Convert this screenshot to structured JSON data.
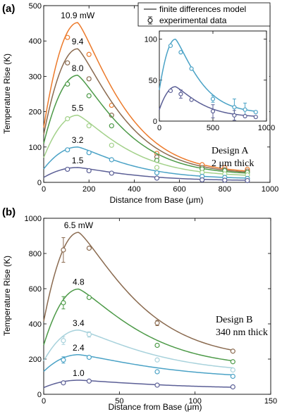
{
  "colors": {
    "orange": "#ec7a2b",
    "brown": "#8a6a4f",
    "green": "#4d9a48",
    "lightgreen": "#a3d18a",
    "lightblue": "#a8d2dc",
    "midblue": "#4aa2c6",
    "navy": "#5b5f96"
  },
  "legend": {
    "model": "finite differences model",
    "exp": "experimental data"
  },
  "chart_data": [
    {
      "type": "line",
      "panel": "(a)",
      "xlabel": "Distance from Base (μm)",
      "ylabel": "Temperature Rise (K)",
      "xlim": [
        0,
        1000
      ],
      "ylim": [
        0,
        500
      ],
      "xticks": [
        0,
        200,
        400,
        600,
        800,
        1000
      ],
      "yticks": [
        0,
        100,
        200,
        300,
        400,
        500
      ],
      "annotation": [
        "Design A",
        "2 μm thick"
      ],
      "legend_position": "top-right",
      "series": [
        {
          "name": "10.9 mW",
          "color": "orange",
          "model": {
            "x0": 0,
            "y0": 155,
            "peak_x": 150,
            "peak_y": 452,
            "tail_x": 900,
            "tail_y": 32
          },
          "points": [
            [
              105,
              410
            ],
            [
              200,
              362
            ],
            [
              300,
              218
            ],
            [
              500,
              82
            ],
            [
              700,
              50
            ],
            [
              800,
              42
            ],
            [
              900,
              37
            ]
          ]
        },
        {
          "name": "9.4",
          "color": "brown",
          "model": {
            "x0": 0,
            "y0": 135,
            "peak_x": 150,
            "peak_y": 378,
            "tail_x": 900,
            "tail_y": 29
          },
          "points": [
            [
              105,
              338
            ],
            [
              200,
              293
            ],
            [
              300,
              190
            ],
            [
              500,
              72
            ],
            [
              700,
              42
            ],
            [
              800,
              36
            ],
            [
              900,
              32
            ]
          ]
        },
        {
          "name": "8.0",
          "color": "green",
          "model": {
            "x0": 0,
            "y0": 110,
            "peak_x": 150,
            "peak_y": 303,
            "tail_x": 900,
            "tail_y": 26
          },
          "points": [
            [
              105,
              278
            ],
            [
              200,
              245
            ],
            [
              300,
              160
            ],
            [
              500,
              62
            ],
            [
              700,
              38
            ],
            [
              800,
              33
            ],
            [
              900,
              28
            ]
          ]
        },
        {
          "name": "5.5",
          "color": "lightgreen",
          "model": {
            "x0": 0,
            "y0": 70,
            "peak_x": 150,
            "peak_y": 190,
            "tail_x": 900,
            "tail_y": 20
          },
          "points": [
            [
              105,
              180
            ],
            [
              200,
              160
            ],
            [
              300,
              105
            ],
            [
              500,
              42
            ],
            [
              700,
              28
            ],
            [
              800,
              24
            ],
            [
              900,
              21
            ]
          ]
        },
        {
          "name": "3.2",
          "color": "midblue",
          "model": {
            "x0": 0,
            "y0": 38,
            "peak_x": 150,
            "peak_y": 100,
            "tail_x": 900,
            "tail_y": 12
          },
          "points": [
            [
              105,
              92
            ],
            [
              200,
              84
            ],
            [
              300,
              64
            ],
            [
              500,
              27
            ],
            [
              700,
              17
            ],
            [
              800,
              14
            ],
            [
              900,
              11
            ]
          ]
        },
        {
          "name": "1.5",
          "color": "navy",
          "model": {
            "x0": 0,
            "y0": 14,
            "peak_x": 150,
            "peak_y": 42,
            "tail_x": 900,
            "tail_y": 6
          },
          "points": [
            [
              105,
              37
            ],
            [
              200,
              33
            ],
            [
              300,
              26
            ],
            [
              500,
              12
            ],
            [
              700,
              7
            ],
            [
              800,
              6
            ],
            [
              900,
              5
            ]
          ]
        }
      ],
      "inset": {
        "xlim": [
          0,
          1000
        ],
        "ylim": [
          0,
          110
        ],
        "xticks": [
          0,
          500,
          1000
        ],
        "yticks": [
          0,
          50,
          100
        ],
        "series": [
          {
            "color": "midblue",
            "model": {
              "x0": 0,
              "y0": 38,
              "peak_x": 150,
              "peak_y": 100,
              "tail_x": 900,
              "tail_y": 12
            },
            "points": [
              [
                105,
                92
              ],
              [
                200,
                84
              ],
              [
                300,
                64
              ],
              [
                500,
                27
              ],
              [
                700,
                17
              ],
              [
                800,
                14
              ],
              [
                900,
                11
              ]
            ],
            "err": [
              0,
              0,
              0,
              4,
              10,
              8,
              0
            ]
          },
          {
            "color": "navy",
            "model": {
              "x0": 0,
              "y0": 14,
              "peak_x": 150,
              "peak_y": 42,
              "tail_x": 900,
              "tail_y": 6
            },
            "points": [
              [
                105,
                37
              ],
              [
                200,
                33
              ],
              [
                300,
                26
              ],
              [
                500,
                12
              ],
              [
                700,
                7
              ],
              [
                800,
                6
              ],
              [
                900,
                5
              ]
            ],
            "err": [
              0,
              5,
              0,
              8,
              6,
              0,
              0
            ]
          }
        ]
      }
    },
    {
      "type": "line",
      "panel": "(b)",
      "xlabel": "Distance from Base (μm)",
      "ylabel": "Temperature Rise (K)",
      "xlim": [
        0,
        150
      ],
      "ylim": [
        0,
        1000
      ],
      "xticks": [
        0,
        50,
        100,
        150
      ],
      "yticks": [
        0,
        200,
        400,
        600,
        800,
        1000
      ],
      "annotation": [
        "Design B",
        "340 nm thick"
      ],
      "series": [
        {
          "name": "6.5 mW",
          "color": "brown",
          "model": {
            "x0": 0,
            "y0": 415,
            "peak_x": 23,
            "peak_y": 920,
            "tail_x": 125,
            "tail_y": 250
          },
          "points": [
            [
              13,
              820
            ],
            [
              30,
              830
            ],
            [
              75,
              405
            ],
            [
              125,
              245
            ]
          ],
          "err": [
            70,
            0,
            15,
            0
          ]
        },
        {
          "name": "4.8",
          "color": "green",
          "model": {
            "x0": 0,
            "y0": 280,
            "peak_x": 23,
            "peak_y": 598,
            "tail_x": 125,
            "tail_y": 190
          },
          "points": [
            [
              13,
              520
            ],
            [
              30,
              550
            ],
            [
              75,
              278
            ],
            [
              125,
              185
            ]
          ],
          "err": [
            35,
            0,
            0,
            0
          ]
        },
        {
          "name": "3.4",
          "color": "lightblue",
          "model": {
            "x0": 0,
            "y0": 190,
            "peak_x": 23,
            "peak_y": 365,
            "tail_x": 125,
            "tail_y": 150
          },
          "points": [
            [
              13,
              305
            ],
            [
              30,
              340
            ],
            [
              75,
              195
            ],
            [
              125,
              138
            ]
          ],
          "err": [
            22,
            15,
            0,
            0
          ]
        },
        {
          "name": "2.4",
          "color": "midblue",
          "model": {
            "x0": 0,
            "y0": 130,
            "peak_x": 23,
            "peak_y": 225,
            "tail_x": 125,
            "tail_y": 110
          },
          "points": [
            [
              13,
              195
            ],
            [
              30,
              210
            ],
            [
              75,
              128
            ],
            [
              125,
              102
            ]
          ],
          "err": [
            18,
            0,
            0,
            0
          ]
        },
        {
          "name": "1.0",
          "color": "navy",
          "model": {
            "x0": 0,
            "y0": 38,
            "peak_x": 23,
            "peak_y": 80,
            "tail_x": 125,
            "tail_y": 40
          },
          "points": [
            [
              13,
              65
            ],
            [
              30,
              75
            ],
            [
              75,
              52
            ],
            [
              125,
              42
            ]
          ],
          "err": [
            0,
            0,
            0,
            0
          ]
        }
      ]
    }
  ]
}
